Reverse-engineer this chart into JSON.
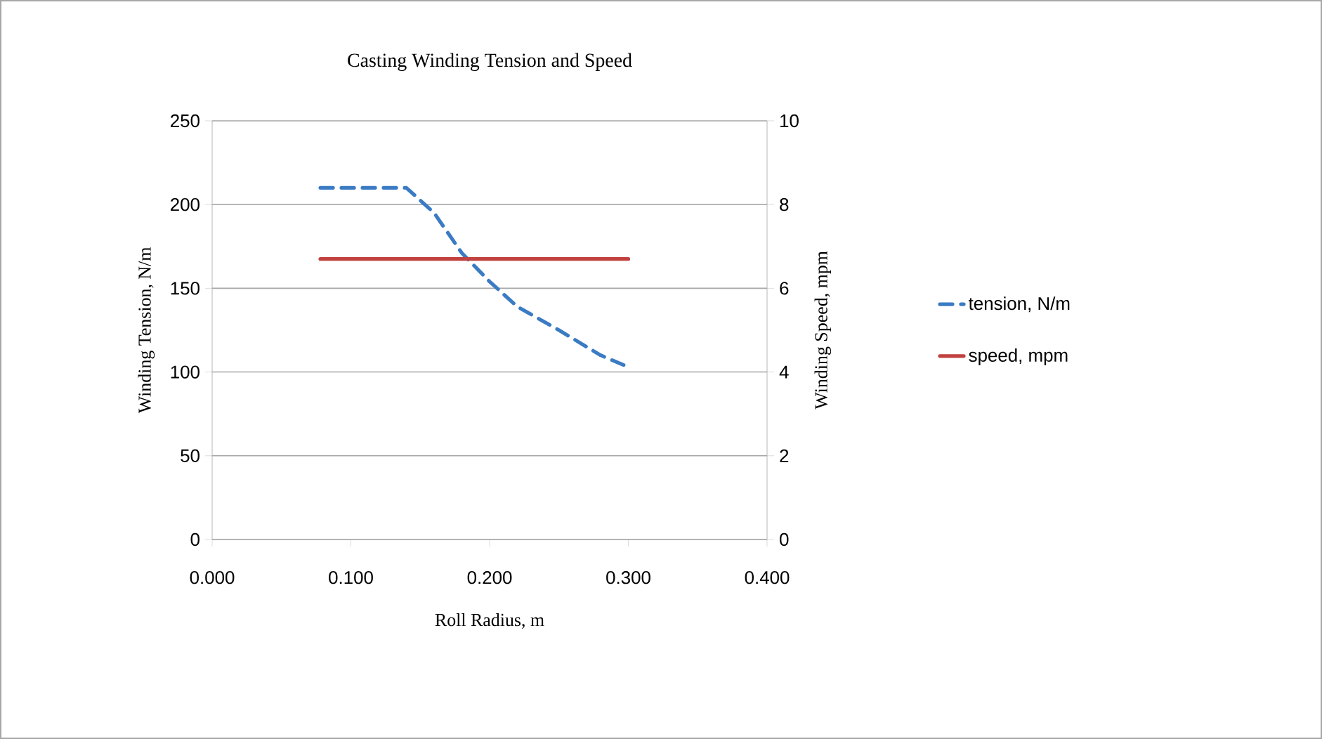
{
  "chart_data": {
    "type": "line",
    "title": "Casting Winding Tension and Speed",
    "xlabel": "Roll Radius, m",
    "ylabel": "Winding Tension, N/m",
    "y2label": "Winding Speed, mpm",
    "xlim": [
      0,
      0.4
    ],
    "xticks": [
      {
        "value": 0,
        "label": "0.000"
      },
      {
        "value": 0.1,
        "label": "0.100"
      },
      {
        "value": 0.2,
        "label": "0.200"
      },
      {
        "value": 0.3,
        "label": "0.300"
      },
      {
        "value": 0.4,
        "label": "0.400"
      }
    ],
    "ylim": [
      0,
      250
    ],
    "yticks": [
      0,
      50,
      100,
      150,
      200,
      250
    ],
    "y2lim": [
      0,
      10
    ],
    "y2ticks": [
      0,
      2,
      4,
      6,
      8,
      10
    ],
    "grid": "y",
    "legend": "right",
    "marker": "none",
    "series": [
      {
        "name": "tension, N/m",
        "color": "#3a7bc4",
        "line_style": "dashed",
        "x": [
          0.078,
          0.1,
          0.12,
          0.14,
          0.16,
          0.18,
          0.2,
          0.22,
          0.25,
          0.28,
          0.3
        ],
        "values": [
          210,
          210,
          210,
          210,
          195,
          171,
          154,
          139,
          125,
          110,
          103
        ]
      },
      {
        "name": "speed, mpm",
        "color": "#c0423f",
        "line_style": "solid",
        "axis": "y2",
        "x": [
          0.078,
          0.3
        ],
        "values": [
          6.7,
          6.7
        ]
      }
    ]
  }
}
